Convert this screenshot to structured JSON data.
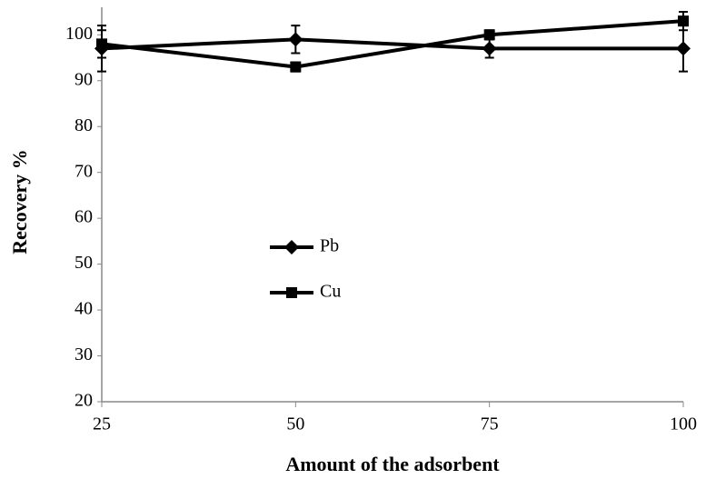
{
  "chart_data": {
    "type": "line",
    "xlabel": "Amount of the adsorbent",
    "ylabel": "Recovery %",
    "x": [
      25,
      50,
      75,
      100
    ],
    "series": [
      {
        "name": "Pb",
        "color": "#000000",
        "marker": "diamond",
        "values": [
          97,
          99,
          97,
          97
        ],
        "errors": [
          5,
          3,
          2,
          5
        ]
      },
      {
        "name": "Cu",
        "color": "#000000",
        "marker": "square",
        "values": [
          98,
          93,
          100,
          103
        ],
        "errors": [
          3,
          1,
          1,
          2
        ]
      }
    ],
    "xlim": [
      25,
      100
    ],
    "xticks": [
      25,
      50,
      75,
      100
    ],
    "ylim": [
      20,
      106
    ],
    "yticks": [
      20,
      30,
      40,
      50,
      60,
      70,
      80,
      90,
      100
    ],
    "grid": false,
    "legend": "center-left"
  }
}
